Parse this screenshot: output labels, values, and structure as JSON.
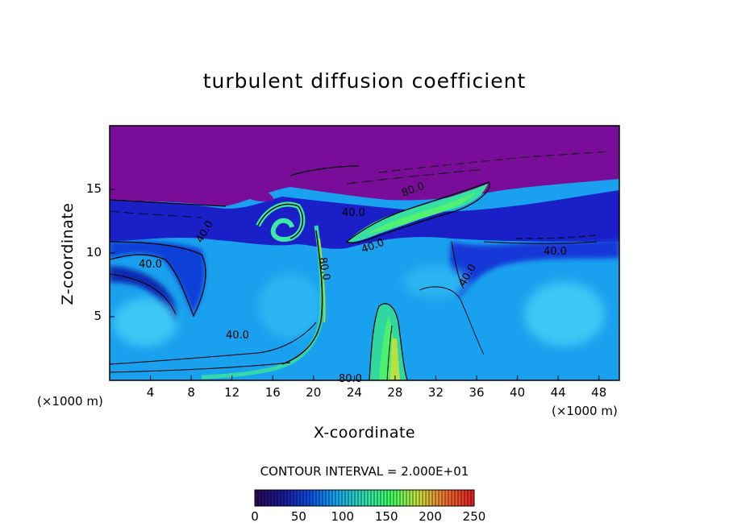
{
  "chart_data": {
    "type": "heatmap",
    "title": "turbulent diffusion coefficient",
    "xlabel": "X-coordinate",
    "ylabel": "Z-coordinate",
    "x_unit": "(×1000 m)",
    "xlim": [
      0,
      50
    ],
    "ylim": [
      0,
      20
    ],
    "x_ticks": [
      "4",
      "8",
      "12",
      "16",
      "20",
      "24",
      "28",
      "32",
      "36",
      "40",
      "44",
      "48"
    ],
    "y_ticks": [
      "5",
      "10",
      "15"
    ],
    "contour_interval_text": "CONTOUR INTERVAL = 2.000E+01",
    "contour_labels": [
      "40.0",
      "40.0",
      "40.0",
      "40.0",
      "40.0",
      "40.0",
      "40.0",
      "80.0",
      "80.0",
      "80.0"
    ],
    "colorbar": {
      "ticks": [
        "0",
        "50",
        "100",
        "150",
        "200",
        "250"
      ],
      "range": [
        0,
        250
      ],
      "colors": [
        "#2a0a55",
        "#1a1a9a",
        "#0a50e0",
        "#19a8f0",
        "#30e0b0",
        "#40ff60",
        "#c8e040",
        "#f07030",
        "#e02020"
      ]
    },
    "background_value_color": "#7a0c9a"
  }
}
